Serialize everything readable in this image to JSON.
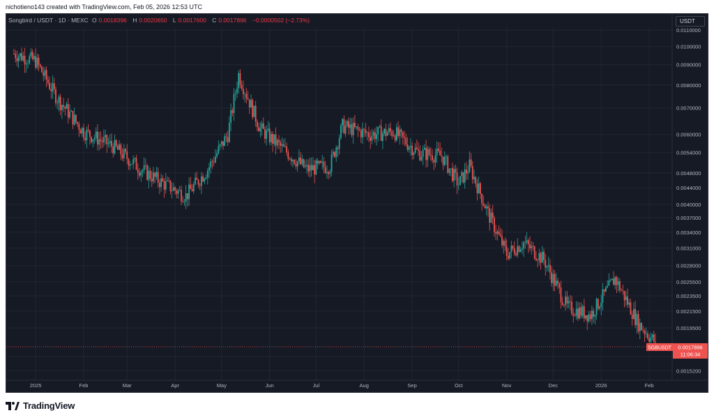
{
  "header": {
    "created_line": "nichotieno143 created with TradingView.com, Feb 05, 2026 12:53 UTC"
  },
  "symbol_bar": {
    "name": "Songbird / USDT · 1D · MEXC",
    "o_label": "O",
    "o_value": "0.0018396",
    "h_label": "H",
    "h_value": "0.0020650",
    "l_label": "L",
    "l_value": "0.0017600",
    "c_label": "C",
    "c_value": "0.0017896",
    "change": "−0.0000502 (−2.73%)"
  },
  "currency_button": "USDT",
  "last_price": {
    "ticker": "SGBUSDT",
    "price": "0.0017896",
    "countdown": "11:06:34"
  },
  "footer": {
    "logo_text": "TradingView"
  },
  "colors": {
    "background": "#161a25",
    "up": "#26a69a",
    "down": "#ef5350",
    "grid": "#232632",
    "axis_text": "#b2b5be"
  },
  "chart_data": {
    "type": "candlestick",
    "title": "Songbird / USDT · 1D · MEXC",
    "scale": "log",
    "grid": true,
    "y_ticks": [
      "0.0110000",
      "0.0100000",
      "0.0090000",
      "0.0080000",
      "0.0070000",
      "0.0060000",
      "0.0054000",
      "0.0048000",
      "0.0044000",
      "0.0040000",
      "0.0037000",
      "0.0034000",
      "0.0031000",
      "0.0028000",
      "0.0025500",
      "0.0023500",
      "0.0021500",
      "0.0019500",
      "0.0016500",
      "0.0015200"
    ],
    "x_ticks": [
      "2025",
      "Feb",
      "Mar",
      "Apr",
      "May",
      "Jun",
      "Jul",
      "Aug",
      "Sep",
      "Oct",
      "Nov",
      "Dec",
      "2026",
      "Feb"
    ],
    "ylim": [
      0.00148,
      0.0111
    ],
    "approx_close_path": [
      {
        "date": "2024-12-18",
        "close": 0.0096
      },
      {
        "date": "2025-01-01",
        "close": 0.0092
      },
      {
        "date": "2025-01-15",
        "close": 0.0074
      },
      {
        "date": "2025-02-01",
        "close": 0.0061
      },
      {
        "date": "2025-02-20",
        "close": 0.0056
      },
      {
        "date": "2025-03-10",
        "close": 0.0049
      },
      {
        "date": "2025-03-25",
        "close": 0.0045
      },
      {
        "date": "2025-04-08",
        "close": 0.0042
      },
      {
        "date": "2025-04-22",
        "close": 0.0049
      },
      {
        "date": "2025-05-05",
        "close": 0.006
      },
      {
        "date": "2025-05-12",
        "close": 0.0085
      },
      {
        "date": "2025-05-26",
        "close": 0.0062
      },
      {
        "date": "2025-06-10",
        "close": 0.0055
      },
      {
        "date": "2025-06-25",
        "close": 0.0049
      },
      {
        "date": "2025-07-10",
        "close": 0.005
      },
      {
        "date": "2025-07-18",
        "close": 0.0063
      },
      {
        "date": "2025-08-05",
        "close": 0.006
      },
      {
        "date": "2025-08-20",
        "close": 0.0061
      },
      {
        "date": "2025-09-05",
        "close": 0.0054
      },
      {
        "date": "2025-09-20",
        "close": 0.0053
      },
      {
        "date": "2025-10-01",
        "close": 0.0045
      },
      {
        "date": "2025-10-08",
        "close": 0.005
      },
      {
        "date": "2025-10-20",
        "close": 0.0038
      },
      {
        "date": "2025-11-01",
        "close": 0.003
      },
      {
        "date": "2025-11-12",
        "close": 0.0032
      },
      {
        "date": "2025-11-25",
        "close": 0.0029
      },
      {
        "date": "2025-12-10",
        "close": 0.0022
      },
      {
        "date": "2025-12-25",
        "close": 0.0021
      },
      {
        "date": "2026-01-10",
        "close": 0.0026
      },
      {
        "date": "2026-01-25",
        "close": 0.002
      },
      {
        "date": "2026-02-05",
        "close": 0.0017896
      }
    ]
  }
}
